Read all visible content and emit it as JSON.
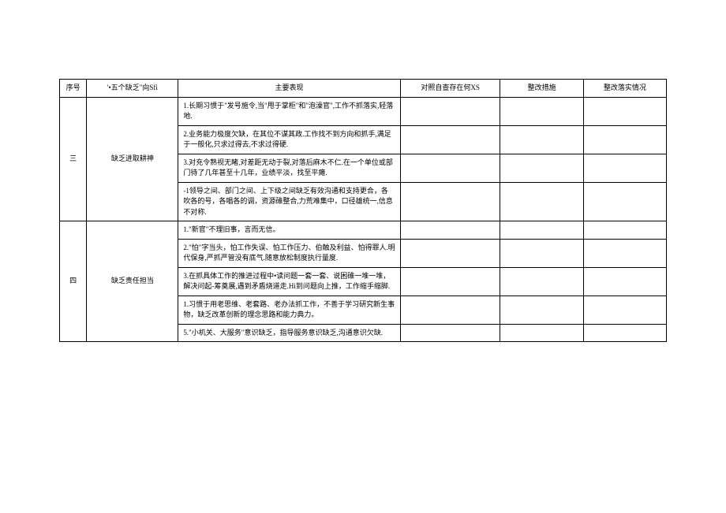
{
  "header": {
    "seq": "序号",
    "category": "'•五个缺乏\"向Sfi",
    "main": "主要表现",
    "xs": "对照自查存在何XS",
    "measure": "整改措施",
    "impl": "整改落实情况"
  },
  "groups": [
    {
      "seq": "三",
      "category": "缺乏进取耕神",
      "rows": [
        "1.长期习惯于\"发号施令,当\"甩于掌柜\"和\"泡澡官\",工作不抓落实,轻落地.",
        "2.业务能力极度欠缺，在其位不谋其政.工作找不到方向和抓手,满足于一般化,只求过得去,不求过得硬.",
        "3.对充令熟视无睹,对差距无动于裂,对落后麻木不仁.在一个单位或部门待了几年甚至十几年，业绩平淡，找至平瘫.",
        "-1领导之间、部门之间、上下级之间缺乏有效沟通和支持更合，各吹各的号，各唱各的调，资源碓整合,力荒难集中，口径雄统一,信息不对称."
      ]
    },
    {
      "seq": "四",
      "category": "缺乏责任担当",
      "rows": [
        "1.\"新官\"不理旧事，言而无信。",
        "2.\"怕\"字当头，怕工作失误、怕工作压力、伯触及利益、怕得罪人.明代保身,严抓严管没有底气.随意放松制度执行量度.",
        "3.在抓具体工作的推进过程中•读问题一套一套、说困碓一堆一堆，解决问起-筹奠展,遇到矛盾烧道走.Hi到问题向上推，工作缩手缩脚.",
        "1.习惯于用老思维、老套路、老办法抓工作，不善于学习研究新生事物，缺乏改革创新的理念思路和能力典力。",
        "5.\"小机关、大服务\"意识缺乏，指导服务意识缺乏,沟通意识欠缺."
      ]
    }
  ]
}
